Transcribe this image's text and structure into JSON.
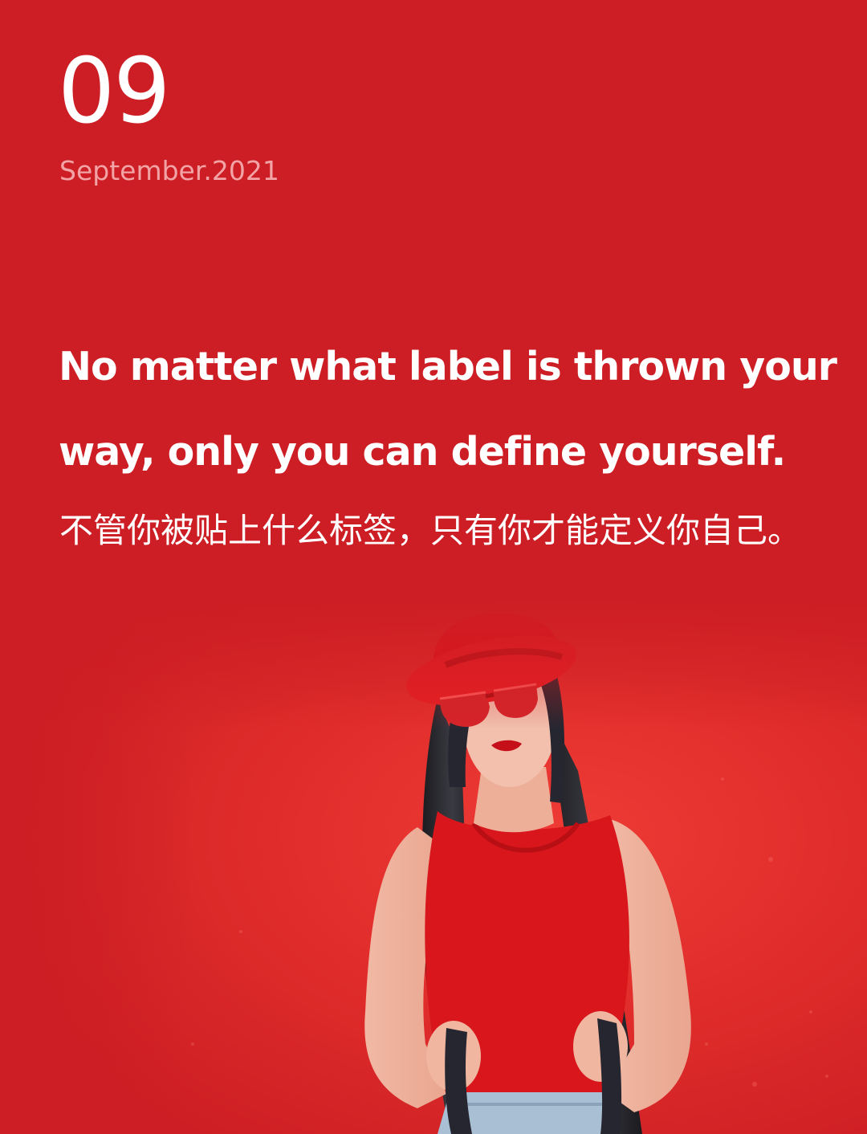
{
  "header": {
    "day": "09",
    "date": "September.2021"
  },
  "quote": {
    "english": "No matter what label is thrown your way, only you can define yourself.",
    "chinese": "不管你被贴上什么标签，只有你才能定义你自己。"
  },
  "colors": {
    "background": "#cc1e24",
    "date_text": "#f2a3a5",
    "text": "#ffffff"
  },
  "photo": {
    "subject": "woman in red hat and red sunglasses leaning against red wall"
  }
}
